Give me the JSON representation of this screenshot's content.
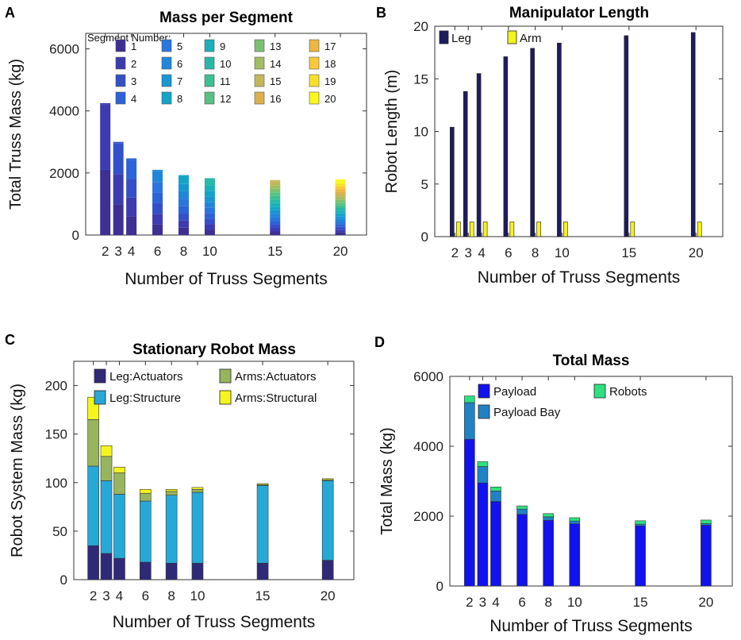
{
  "chart_data": [
    {
      "panel": "A",
      "type": "bar",
      "stacked": true,
      "title": "Mass per Segment",
      "xlabel": "Number of Truss Segments",
      "ylabel": "Total Truss Mass (kg)",
      "x": [
        2,
        3,
        4,
        6,
        8,
        10,
        15,
        20
      ],
      "xlim": [
        0.5,
        22
      ],
      "ylim": [
        0,
        6500
      ],
      "yticks": [
        0,
        2000,
        4000,
        6000
      ],
      "totals": [
        4200,
        2950,
        2420,
        2050,
        1880,
        1780,
        1720,
        1740
      ],
      "legend_title": "Segment Number:",
      "legend_labels": [
        "1",
        "2",
        "3",
        "4",
        "5",
        "6",
        "7",
        "8",
        "9",
        "10",
        "11",
        "12",
        "13",
        "14",
        "15",
        "16",
        "17",
        "18",
        "19",
        "20"
      ],
      "segment_colors": [
        "#3e2f94",
        "#3d3bb0",
        "#3450c8",
        "#2c63d8",
        "#2a75de",
        "#2086da",
        "#1896d2",
        "#14a4c8",
        "#1bb0b8",
        "#27b8a6",
        "#3dbe93",
        "#5ac084",
        "#7dc072",
        "#a2bd62",
        "#c2b859",
        "#dbb14e",
        "#eeb642",
        "#f8c93a",
        "#f6e02a",
        "#f9f71e"
      ]
    },
    {
      "panel": "B",
      "type": "bar",
      "title": "Manipulator Length",
      "xlabel": "Number of Truss Segments",
      "ylabel": "Robot Length (m)",
      "x": [
        2,
        3,
        4,
        6,
        8,
        10,
        15,
        20
      ],
      "xlim": [
        0.5,
        22
      ],
      "ylim": [
        0,
        20
      ],
      "yticks": [
        0,
        5,
        10,
        15,
        20
      ],
      "series": [
        {
          "name": "Leg",
          "color": "#1f1b5e",
          "values": [
            10.4,
            13.8,
            15.5,
            17.1,
            17.9,
            18.4,
            19.1,
            19.4
          ]
        },
        {
          "name": "Arm",
          "color": "#f4f41e",
          "values": [
            1.4,
            1.4,
            1.4,
            1.4,
            1.4,
            1.4,
            1.4,
            1.4
          ]
        }
      ]
    },
    {
      "panel": "C",
      "type": "bar",
      "stacked": true,
      "title": "Stationary Robot Mass",
      "xlabel": "Number of Truss Segments",
      "ylabel": "Robot System Mass (kg)",
      "x": [
        2,
        3,
        4,
        6,
        8,
        10,
        15,
        20
      ],
      "xlim": [
        0.5,
        22
      ],
      "ylim": [
        0,
        225
      ],
      "yticks": [
        0,
        50,
        100,
        150,
        200
      ],
      "series": [
        {
          "name": "Leg:Actuators",
          "color": "#2e2a78",
          "values": [
            35,
            27,
            22,
            18,
            17,
            17,
            17,
            20
          ]
        },
        {
          "name": "Leg:Structure",
          "color": "#27a9d8",
          "values": [
            82,
            75,
            66,
            63,
            70,
            73,
            80,
            82
          ]
        },
        {
          "name": "Arms:Actuators",
          "color": "#98b55e",
          "values": [
            48,
            25,
            22,
            8,
            4,
            3,
            1,
            1
          ]
        },
        {
          "name": "Arms:Structural",
          "color": "#f5f51e",
          "values": [
            23,
            11,
            6,
            4,
            2,
            2,
            1,
            1
          ]
        }
      ]
    },
    {
      "panel": "D",
      "type": "bar",
      "stacked": true,
      "title": "Total Mass",
      "xlabel": "Number of Truss Segments",
      "ylabel": "Total Mass (kg)",
      "x": [
        2,
        3,
        4,
        6,
        8,
        10,
        15,
        20
      ],
      "xlim": [
        0.5,
        22
      ],
      "ylim": [
        0,
        6000
      ],
      "yticks": [
        0,
        2000,
        4000,
        6000
      ],
      "series": [
        {
          "name": "Payload",
          "color": "#1212ee",
          "values": [
            4200,
            2950,
            2420,
            2050,
            1880,
            1780,
            1720,
            1740
          ]
        },
        {
          "name": "Payload Bay",
          "color": "#1f82c4",
          "values": [
            1050,
            470,
            300,
            150,
            100,
            80,
            50,
            45
          ]
        },
        {
          "name": "Robots",
          "color": "#2ee07f",
          "values": [
            190,
            138,
            115,
            93,
            93,
            95,
            98,
            103
          ]
        }
      ]
    }
  ],
  "panel_labels": [
    "A",
    "B",
    "C",
    "D"
  ]
}
